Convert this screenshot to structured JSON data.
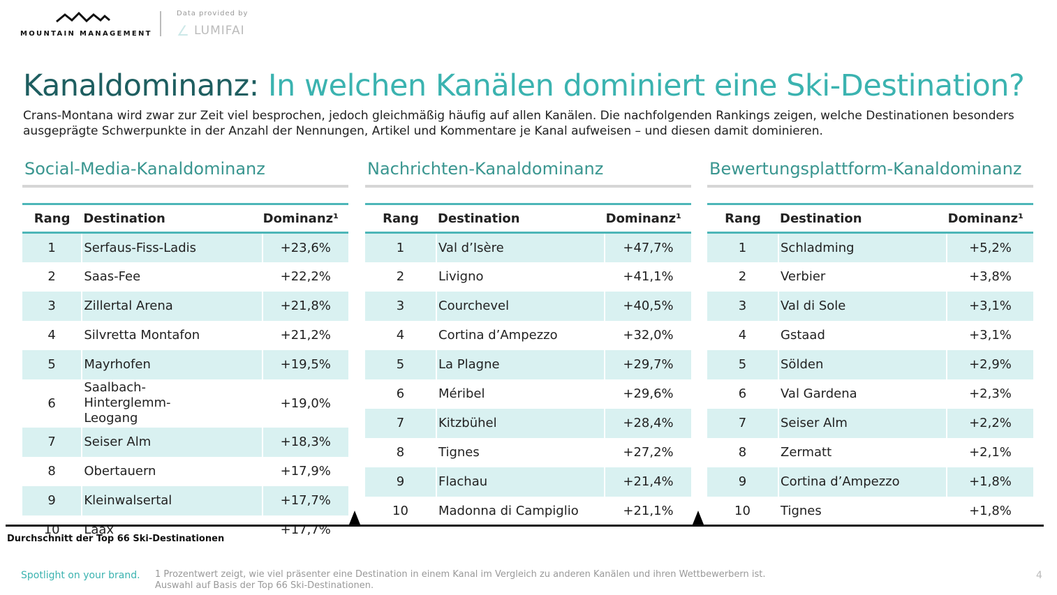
{
  "header": {
    "brand": "MOUNTAIN MANAGEMENT",
    "data_provided": "Data provided by",
    "provider": "LUMIFAI"
  },
  "title": {
    "part1": "Kanaldominanz:",
    "part2": "In welchen Kanälen dominiert eine Ski-Destination?"
  },
  "intro": "Crans-Montana wird zwar zur Zeit viel besprochen, jedoch gleichmäßig häufig auf allen Kanälen. Die nachfolgenden Rankings zeigen, welche Destinationen besonders ausgeprägte Schwerpunkte in der Anzahl der Nennungen, Artikel und Kommentare je Kanal aufweisen – und diesen damit dominieren.",
  "columns": {
    "rank": "Rang",
    "destination": "Destination",
    "dominance": "Dominanz¹"
  },
  "tables": [
    {
      "title": "Social-Media-Kanaldominanz",
      "rows": [
        {
          "rank": "1",
          "dest": "Serfaus-Fiss-Ladis",
          "val": "+23,6%"
        },
        {
          "rank": "2",
          "dest": "Saas-Fee",
          "val": "+22,2%"
        },
        {
          "rank": "3",
          "dest": "Zillertal Arena",
          "val": "+21,8%"
        },
        {
          "rank": "4",
          "dest": "Silvretta Montafon",
          "val": "+21,2%"
        },
        {
          "rank": "5",
          "dest": "Mayrhofen",
          "val": "+19,5%"
        },
        {
          "rank": "6",
          "dest": "Saalbach-Hinterglemm-Leogang",
          "val": "+19,0%"
        },
        {
          "rank": "7",
          "dest": "Seiser Alm",
          "val": "+18,3%"
        },
        {
          "rank": "8",
          "dest": "Obertauern",
          "val": "+17,9%"
        },
        {
          "rank": "9",
          "dest": "Kleinwalsertal",
          "val": "+17,7%"
        },
        {
          "rank": "10",
          "dest": "Laax",
          "val": "+17,7%"
        }
      ]
    },
    {
      "title": "Nachrichten-Kanaldominanz",
      "rows": [
        {
          "rank": "1",
          "dest": "Val d’Isère",
          "val": "+47,7%"
        },
        {
          "rank": "2",
          "dest": "Livigno",
          "val": "+41,1%"
        },
        {
          "rank": "3",
          "dest": "Courchevel",
          "val": "+40,5%"
        },
        {
          "rank": "4",
          "dest": "Cortina d’Ampezzo",
          "val": "+32,0%"
        },
        {
          "rank": "5",
          "dest": "La Plagne",
          "val": "+29,7%"
        },
        {
          "rank": "6",
          "dest": "Méribel",
          "val": "+29,6%"
        },
        {
          "rank": "7",
          "dest": "Kitzbühel",
          "val": "+28,4%"
        },
        {
          "rank": "8",
          "dest": "Tignes",
          "val": "+27,2%"
        },
        {
          "rank": "9",
          "dest": "Flachau",
          "val": "+21,4%"
        },
        {
          "rank": "10",
          "dest": "Madonna di Campiglio",
          "val": "+21,1%"
        }
      ]
    },
    {
      "title": "Bewertungsplattform-Kanaldominanz",
      "rows": [
        {
          "rank": "1",
          "dest": "Schladming",
          "val": "+5,2%"
        },
        {
          "rank": "2",
          "dest": "Verbier",
          "val": "+3,8%"
        },
        {
          "rank": "3",
          "dest": "Val di Sole",
          "val": "+3,1%"
        },
        {
          "rank": "4",
          "dest": "Gstaad",
          "val": "+3,1%"
        },
        {
          "rank": "5",
          "dest": "Sölden",
          "val": "+2,9%"
        },
        {
          "rank": "6",
          "dest": "Val Gardena",
          "val": "+2,3%"
        },
        {
          "rank": "7",
          "dest": "Seiser Alm",
          "val": "+2,2%"
        },
        {
          "rank": "8",
          "dest": "Zermatt",
          "val": "+2,1%"
        },
        {
          "rank": "9",
          "dest": "Cortina d’Ampezzo",
          "val": "+1,8%"
        },
        {
          "rank": "10",
          "dest": "Tignes",
          "val": "+1,8%"
        }
      ]
    }
  ],
  "average_label": "Durchschnitt der Top 66 Ski-Destinationen",
  "footer": {
    "slogan": "Spotlight on your brand.",
    "note1": "1 Prozentwert zeigt, wie viel präsenter eine Destination in einem Kanal im Vergleich zu anderen Kanälen und ihren Wettbewerbern ist.",
    "note2": "Auswahl auf Basis der Top 66 Ski-Destinationen.",
    "page": "4"
  }
}
